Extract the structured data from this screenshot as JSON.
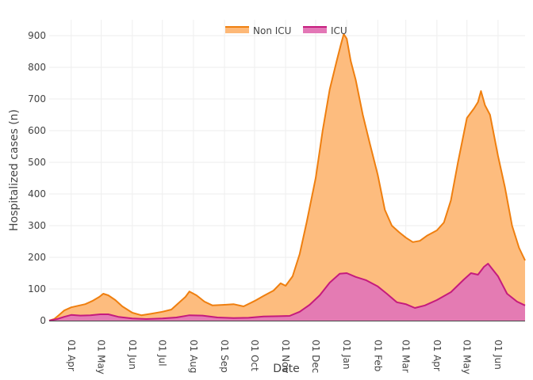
{
  "chart_data": {
    "type": "area",
    "xlabel": "Date",
    "ylabel": "Hospitalized cases (n)",
    "xlim": [
      "2020-03-10",
      "2021-06-28"
    ],
    "ylim": [
      0,
      950
    ],
    "grid": true,
    "legend_position": "top-center",
    "x_ticks": [
      {
        "date": "2020-04-01",
        "label": "01 Apr"
      },
      {
        "date": "2020-05-01",
        "label": "01 May"
      },
      {
        "date": "2020-06-01",
        "label": "01 Jun"
      },
      {
        "date": "2020-07-01",
        "label": "01 Jul"
      },
      {
        "date": "2020-08-01",
        "label": "01 Aug"
      },
      {
        "date": "2020-09-01",
        "label": "01 Sep"
      },
      {
        "date": "2020-10-01",
        "label": "01 Oct"
      },
      {
        "date": "2020-11-01",
        "label": "01 Nov"
      },
      {
        "date": "2020-12-01",
        "label": "01 Dec"
      },
      {
        "date": "2021-01-01",
        "label": "01 Jan"
      },
      {
        "date": "2021-02-01",
        "label": "01 Feb"
      },
      {
        "date": "2021-03-01",
        "label": "01 Mar"
      },
      {
        "date": "2021-04-01",
        "label": "01 Apr"
      },
      {
        "date": "2021-05-01",
        "label": "01 May"
      },
      {
        "date": "2021-06-01",
        "label": "01 Jun"
      }
    ],
    "y_ticks": [
      0,
      100,
      200,
      300,
      400,
      500,
      600,
      700,
      800,
      900
    ],
    "series": [
      {
        "name": "Non ICU",
        "line_color": "#ef7f0f",
        "fill_color": "#fdb877",
        "points": [
          [
            "2020-03-10",
            0
          ],
          [
            "2020-03-15",
            5
          ],
          [
            "2020-03-20",
            18
          ],
          [
            "2020-03-25",
            32
          ],
          [
            "2020-04-01",
            42
          ],
          [
            "2020-04-08",
            47
          ],
          [
            "2020-04-15",
            52
          ],
          [
            "2020-04-22",
            62
          ],
          [
            "2020-04-29",
            75
          ],
          [
            "2020-05-03",
            85
          ],
          [
            "2020-05-08",
            80
          ],
          [
            "2020-05-15",
            65
          ],
          [
            "2020-05-22",
            45
          ],
          [
            "2020-06-01",
            25
          ],
          [
            "2020-06-10",
            17
          ],
          [
            "2020-06-20",
            22
          ],
          [
            "2020-07-01",
            28
          ],
          [
            "2020-07-10",
            35
          ],
          [
            "2020-07-17",
            55
          ],
          [
            "2020-07-24",
            75
          ],
          [
            "2020-07-28",
            92
          ],
          [
            "2020-08-04",
            80
          ],
          [
            "2020-08-12",
            60
          ],
          [
            "2020-08-20",
            48
          ],
          [
            "2020-09-01",
            50
          ],
          [
            "2020-09-10",
            52
          ],
          [
            "2020-09-20",
            45
          ],
          [
            "2020-10-01",
            62
          ],
          [
            "2020-10-10",
            78
          ],
          [
            "2020-10-20",
            95
          ],
          [
            "2020-10-27",
            118
          ],
          [
            "2020-11-01",
            110
          ],
          [
            "2020-11-08",
            140
          ],
          [
            "2020-11-15",
            210
          ],
          [
            "2020-11-22",
            310
          ],
          [
            "2020-12-01",
            450
          ],
          [
            "2020-12-08",
            600
          ],
          [
            "2020-12-15",
            730
          ],
          [
            "2020-12-22",
            820
          ],
          [
            "2020-12-26",
            870
          ],
          [
            "2020-12-29",
            905
          ],
          [
            "2021-01-01",
            890
          ],
          [
            "2021-01-05",
            820
          ],
          [
            "2021-01-10",
            760
          ],
          [
            "2021-01-17",
            650
          ],
          [
            "2021-01-24",
            560
          ],
          [
            "2021-02-01",
            460
          ],
          [
            "2021-02-08",
            350
          ],
          [
            "2021-02-15",
            300
          ],
          [
            "2021-02-22",
            280
          ],
          [
            "2021-03-01",
            262
          ],
          [
            "2021-03-08",
            248
          ],
          [
            "2021-03-15",
            252
          ],
          [
            "2021-03-22",
            268
          ],
          [
            "2021-04-01",
            285
          ],
          [
            "2021-04-08",
            310
          ],
          [
            "2021-04-15",
            380
          ],
          [
            "2021-04-22",
            500
          ],
          [
            "2021-05-01",
            640
          ],
          [
            "2021-05-08",
            670
          ],
          [
            "2021-05-12",
            690
          ],
          [
            "2021-05-15",
            725
          ],
          [
            "2021-05-19",
            680
          ],
          [
            "2021-05-24",
            650
          ],
          [
            "2021-06-01",
            520
          ],
          [
            "2021-06-08",
            420
          ],
          [
            "2021-06-15",
            300
          ],
          [
            "2021-06-22",
            230
          ],
          [
            "2021-06-28",
            190
          ]
        ]
      },
      {
        "name": "ICU",
        "line_color": "#c51b7d",
        "fill_color": "#e377b6",
        "points": [
          [
            "2020-03-10",
            0
          ],
          [
            "2020-03-18",
            5
          ],
          [
            "2020-03-25",
            12
          ],
          [
            "2020-04-01",
            18
          ],
          [
            "2020-04-10",
            16
          ],
          [
            "2020-04-20",
            17
          ],
          [
            "2020-04-30",
            20
          ],
          [
            "2020-05-08",
            20
          ],
          [
            "2020-05-18",
            12
          ],
          [
            "2020-06-01",
            7
          ],
          [
            "2020-06-15",
            5
          ],
          [
            "2020-07-01",
            7
          ],
          [
            "2020-07-15",
            10
          ],
          [
            "2020-07-28",
            17
          ],
          [
            "2020-08-10",
            16
          ],
          [
            "2020-08-25",
            10
          ],
          [
            "2020-09-10",
            8
          ],
          [
            "2020-09-25",
            9
          ],
          [
            "2020-10-10",
            13
          ],
          [
            "2020-10-25",
            14
          ],
          [
            "2020-11-05",
            15
          ],
          [
            "2020-11-15",
            28
          ],
          [
            "2020-11-25",
            50
          ],
          [
            "2020-12-05",
            80
          ],
          [
            "2020-12-15",
            120
          ],
          [
            "2020-12-25",
            148
          ],
          [
            "2021-01-01",
            150
          ],
          [
            "2021-01-10",
            138
          ],
          [
            "2021-01-20",
            128
          ],
          [
            "2021-02-01",
            108
          ],
          [
            "2021-02-10",
            85
          ],
          [
            "2021-02-20",
            58
          ],
          [
            "2021-03-01",
            52
          ],
          [
            "2021-03-10",
            40
          ],
          [
            "2021-03-20",
            48
          ],
          [
            "2021-04-01",
            65
          ],
          [
            "2021-04-15",
            90
          ],
          [
            "2021-04-28",
            130
          ],
          [
            "2021-05-05",
            150
          ],
          [
            "2021-05-12",
            145
          ],
          [
            "2021-05-18",
            170
          ],
          [
            "2021-05-22",
            180
          ],
          [
            "2021-06-01",
            140
          ],
          [
            "2021-06-10",
            85
          ],
          [
            "2021-06-20",
            60
          ],
          [
            "2021-06-28",
            48
          ]
        ]
      }
    ]
  }
}
